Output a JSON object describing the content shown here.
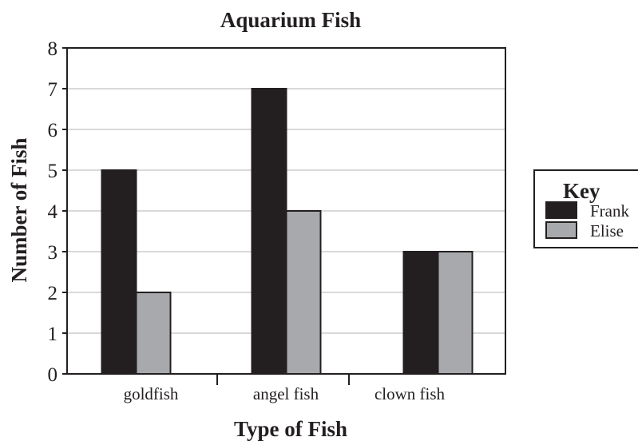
{
  "chart_data": {
    "type": "bar",
    "title": "Aquarium Fish",
    "xlabel": "Type of Fish",
    "ylabel": "Number of Fish",
    "categories": [
      "goldfish",
      "angel fish",
      "clown fish"
    ],
    "series": [
      {
        "name": "Frank",
        "values": [
          5,
          7,
          3
        ],
        "color": "#231f20"
      },
      {
        "name": "Elise",
        "values": [
          2,
          4,
          3
        ],
        "color": "#a7a9ac"
      }
    ],
    "ylim": [
      0,
      8
    ],
    "yticks": [
      0,
      1,
      2,
      3,
      4,
      5,
      6,
      7,
      8
    ],
    "grid": true,
    "legend": {
      "title": "Key",
      "placement": "right"
    }
  }
}
